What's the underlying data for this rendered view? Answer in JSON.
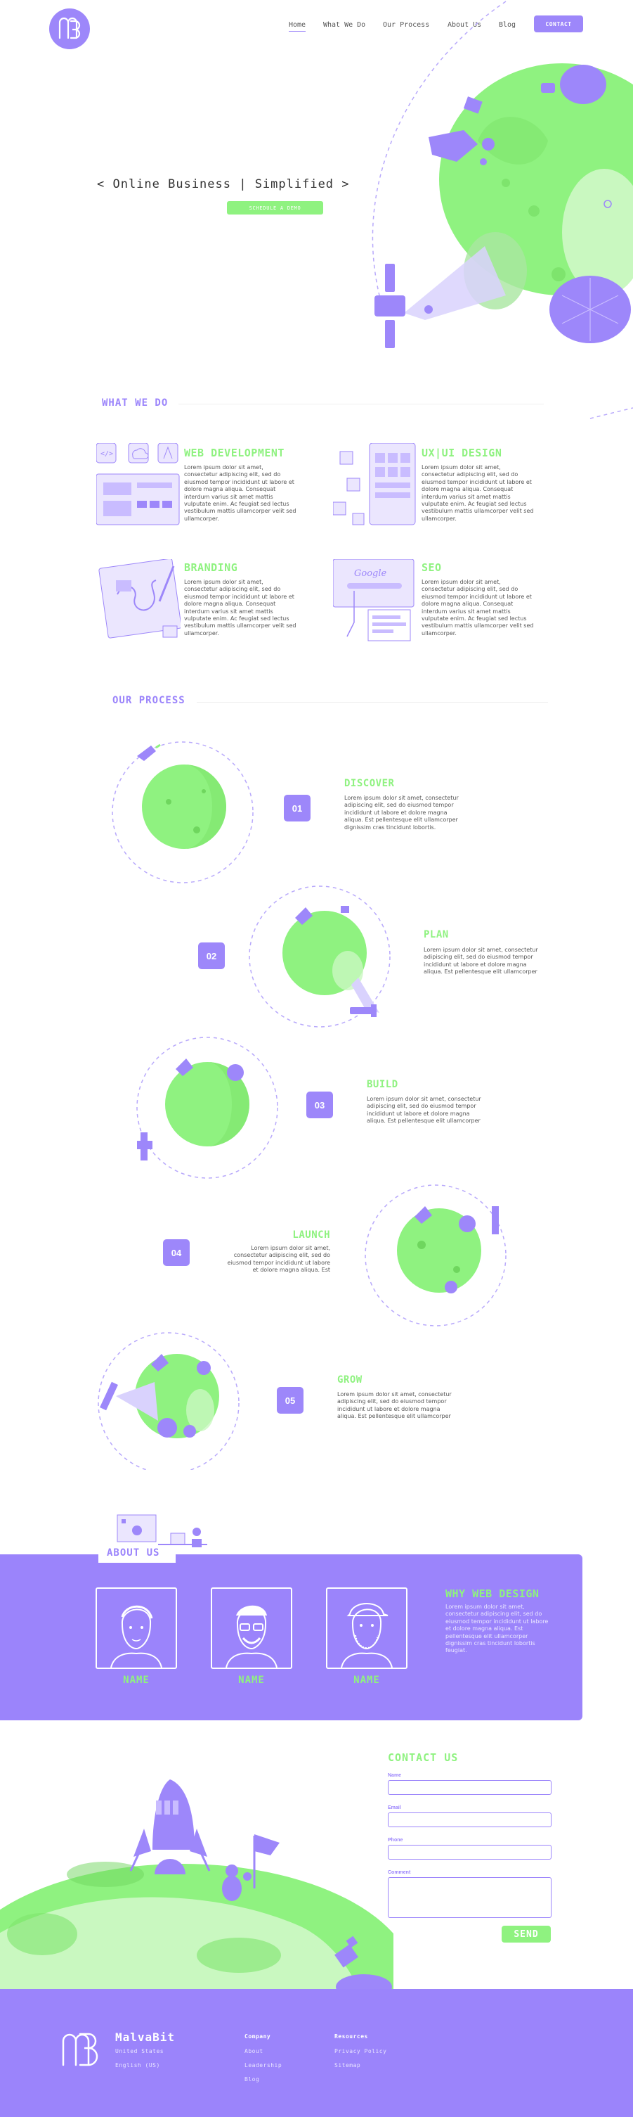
{
  "nav": {
    "items": [
      "Home",
      "What We Do",
      "Our Process",
      "About Us",
      "Blog"
    ],
    "contact": "CONTACT"
  },
  "hero": {
    "title": "< Online Business | Simplified >",
    "button": "SCHEDULE A DEMO"
  },
  "services": {
    "heading": "WHAT WE DO",
    "items": [
      {
        "title": "WEB DEVELOPMENT",
        "text": "Lorem ipsum dolor sit amet, consectetur adipiscing elit, sed do eiusmod tempor incididunt ut labore et dolore magna aliqua. Consequat interdum varius sit amet mattis vulputate enim. Ac feugiat sed lectus vestibulum mattis ullamcorper velit sed ullamcorper."
      },
      {
        "title": "UX|UI DESIGN",
        "text": "Lorem ipsum dolor sit amet, consectetur adipiscing elit, sed do eiusmod tempor incididunt ut labore et dolore magna aliqua. Consequat interdum varius sit amet mattis vulputate enim. Ac feugiat sed lectus vestibulum mattis ullamcorper velit sed ullamcorper."
      },
      {
        "title": "BRANDING",
        "text": "Lorem ipsum dolor sit amet, consectetur adipiscing elit, sed do eiusmod tempor incididunt ut labore et dolore magna aliqua. Consequat interdum varius sit amet mattis vulputate enim. Ac feugiat sed lectus vestibulum mattis ullamcorper velit sed ullamcorper."
      },
      {
        "title": "SEO",
        "text": "Lorem ipsum dolor sit amet, consectetur adipiscing elit, sed do eiusmod tempor incididunt ut labore et dolore magna aliqua. Consequat interdum varius sit amet mattis vulputate enim. Ac feugiat sed lectus vestibulum mattis ullamcorper velit sed ullamcorper."
      }
    ],
    "seo_search_text": "Google"
  },
  "process": {
    "heading": "OUR PROCESS",
    "steps": [
      {
        "num": "01",
        "title": "DISCOVER",
        "text": "Lorem ipsum dolor sit amet, consectetur adipiscing elit, sed do eiusmod tempor incididunt ut labore et dolore magna aliqua. Est pellentesque elit ullamcorper dignissim cras tincidunt lobortis."
      },
      {
        "num": "02",
        "title": "PLAN",
        "text": "Lorem ipsum dolor sit amet, consectetur adipiscing elit, sed do eiusmod tempor incididunt ut labore et dolore magna aliqua. Est pellentesque elit ullamcorper"
      },
      {
        "num": "03",
        "title": "BUILD",
        "text": "Lorem ipsum dolor sit amet, consectetur adipiscing elit, sed do eiusmod tempor incididunt ut labore et dolore magna aliqua. Est pellentesque elit ullamcorper"
      },
      {
        "num": "04",
        "title": "LAUNCH",
        "text": "Lorem ipsum dolor sit amet, consectetur adipiscing elit, sed do eiusmod tempor incididunt ut labore et dolore magna aliqua. Est"
      },
      {
        "num": "05",
        "title": "GROW",
        "text": "Lorem ipsum dolor sit amet, consectetur adipiscing elit, sed do eiusmod tempor incididunt ut labore et dolore magna aliqua. Est pellentesque elit ullamcorper"
      }
    ]
  },
  "about": {
    "heading": "ABOUT US",
    "team": [
      "NAME",
      "NAME",
      "NAME"
    ],
    "why_title": "WHY WEB DESIGN",
    "why_text": "Lorem ipsum dolor sit amet, consectetur adipiscing elit, sed do eiusmod tempor incididunt ut labore et dolore magna aliqua. Est pellentesque elit ullamcorper dignissim cras tincidunt lobortis feugiat."
  },
  "contact": {
    "heading": "CONTACT US",
    "labels": [
      "Name",
      "Email",
      "Phone",
      "Comment"
    ],
    "send": "SEND"
  },
  "footer": {
    "brand": "MalvaBit",
    "country": "United States",
    "language": "English (US)",
    "company_heading": "Company",
    "company_links": [
      "About",
      "Leadership",
      "Blog"
    ],
    "resources_heading": "Resources",
    "resources_links": [
      "Privacy Policy",
      "Sitemap"
    ]
  },
  "colors": {
    "purple": "#9b84fb",
    "green": "#8ff280",
    "light_green": "#c9f8c0"
  }
}
